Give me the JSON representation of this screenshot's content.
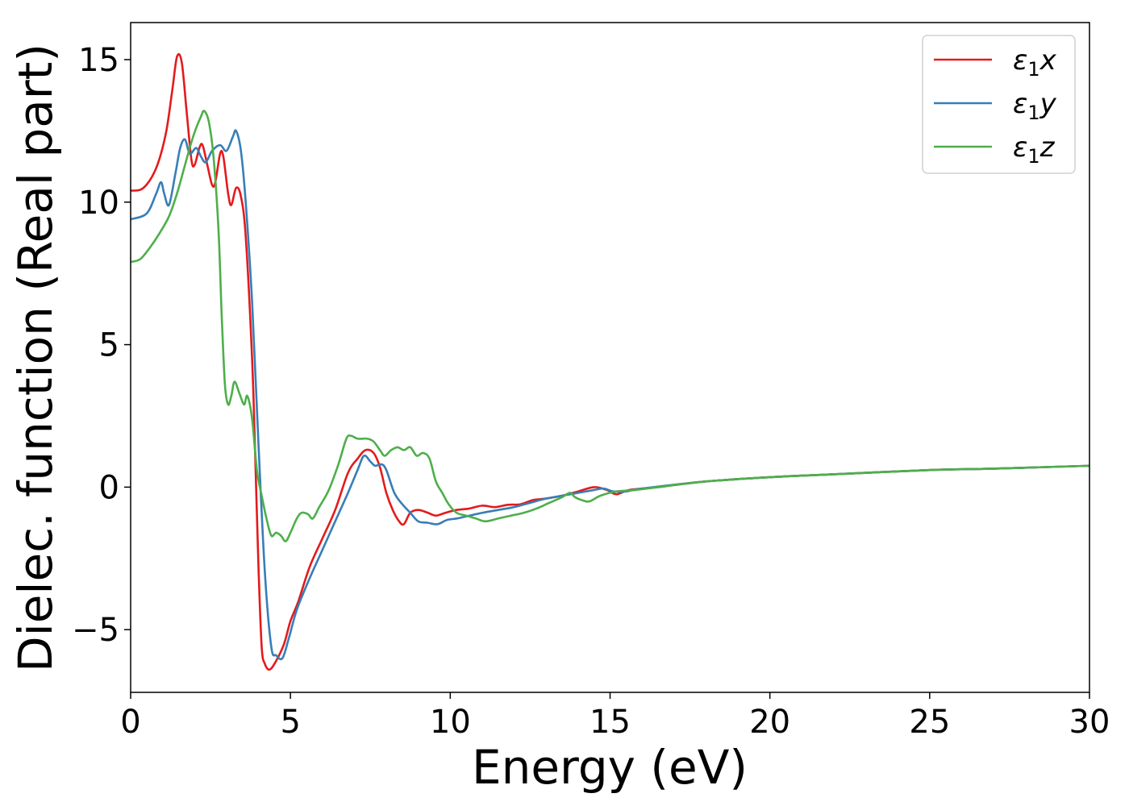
{
  "chart_data": {
    "type": "line",
    "title": "",
    "xlabel": "Energy (eV)",
    "ylabel": "Dielec. function (Real part)",
    "xlim": [
      0,
      30
    ],
    "ylim": [
      -7.2,
      16.3
    ],
    "xticks": [
      0,
      5,
      10,
      15,
      20,
      25,
      30
    ],
    "yticks": [
      -5,
      0,
      5,
      10,
      15
    ],
    "xtick_labels": [
      "0",
      "5",
      "10",
      "15",
      "20",
      "25",
      "30"
    ],
    "ytick_labels": [
      "−5",
      "0",
      "5",
      "10",
      "15"
    ],
    "grid": false,
    "legend_position": "top-right",
    "series": [
      {
        "name": "ε₁x",
        "legend": {
          "symbol": "ε",
          "sub": "1",
          "var": "x"
        },
        "color": "#e41a1c",
        "points": [
          [
            0,
            10.4
          ],
          [
            0.4,
            10.5
          ],
          [
            0.8,
            11.2
          ],
          [
            1.1,
            12.4
          ],
          [
            1.3,
            13.9
          ],
          [
            1.45,
            15.1
          ],
          [
            1.6,
            14.9
          ],
          [
            1.75,
            13.2
          ],
          [
            1.9,
            11.5
          ],
          [
            2.0,
            11.3
          ],
          [
            2.15,
            11.9
          ],
          [
            2.25,
            12.0
          ],
          [
            2.4,
            11.3
          ],
          [
            2.55,
            10.6
          ],
          [
            2.65,
            10.7
          ],
          [
            2.8,
            11.7
          ],
          [
            2.9,
            11.6
          ],
          [
            3.05,
            10.3
          ],
          [
            3.15,
            9.9
          ],
          [
            3.3,
            10.5
          ],
          [
            3.45,
            10.2
          ],
          [
            3.6,
            8.8
          ],
          [
            3.8,
            4.5
          ],
          [
            3.9,
            1.0
          ],
          [
            4.0,
            -2.8
          ],
          [
            4.1,
            -5.6
          ],
          [
            4.2,
            -6.2
          ],
          [
            4.35,
            -6.4
          ],
          [
            4.55,
            -6.1
          ],
          [
            4.8,
            -5.5
          ],
          [
            5.0,
            -4.7
          ],
          [
            5.25,
            -4.0
          ],
          [
            5.6,
            -2.8
          ],
          [
            6.0,
            -1.8
          ],
          [
            6.4,
            -0.8
          ],
          [
            6.8,
            0.5
          ],
          [
            7.1,
            1.0
          ],
          [
            7.35,
            1.3
          ],
          [
            7.6,
            1.2
          ],
          [
            7.8,
            0.7
          ],
          [
            8.0,
            -0.2
          ],
          [
            8.2,
            -0.8
          ],
          [
            8.4,
            -1.2
          ],
          [
            8.55,
            -1.3
          ],
          [
            8.75,
            -0.9
          ],
          [
            9.0,
            -0.8
          ],
          [
            9.3,
            -0.9
          ],
          [
            9.55,
            -1.0
          ],
          [
            9.85,
            -0.9
          ],
          [
            10.2,
            -0.8
          ],
          [
            10.6,
            -0.75
          ],
          [
            11.0,
            -0.65
          ],
          [
            11.4,
            -0.7
          ],
          [
            11.8,
            -0.62
          ],
          [
            12.2,
            -0.6
          ],
          [
            12.6,
            -0.45
          ],
          [
            13.0,
            -0.4
          ],
          [
            13.5,
            -0.3
          ],
          [
            14.0,
            -0.15
          ],
          [
            14.5,
            0.0
          ],
          [
            14.9,
            -0.1
          ],
          [
            15.2,
            -0.25
          ],
          [
            15.6,
            -0.1
          ],
          [
            16.5,
            0.0
          ],
          [
            18,
            0.2
          ],
          [
            20,
            0.35
          ],
          [
            22,
            0.45
          ],
          [
            25,
            0.6
          ],
          [
            27,
            0.65
          ],
          [
            30,
            0.75
          ]
        ]
      },
      {
        "name": "ε₁y",
        "legend": {
          "symbol": "ε",
          "sub": "1",
          "var": "y"
        },
        "color": "#377eb8",
        "points": [
          [
            0,
            9.4
          ],
          [
            0.5,
            9.6
          ],
          [
            0.8,
            10.3
          ],
          [
            0.95,
            10.7
          ],
          [
            1.05,
            10.3
          ],
          [
            1.2,
            9.9
          ],
          [
            1.4,
            11.0
          ],
          [
            1.55,
            11.9
          ],
          [
            1.7,
            12.2
          ],
          [
            1.85,
            11.7
          ],
          [
            2.05,
            11.9
          ],
          [
            2.2,
            11.6
          ],
          [
            2.35,
            11.4
          ],
          [
            2.55,
            11.8
          ],
          [
            2.8,
            12.0
          ],
          [
            3.0,
            11.8
          ],
          [
            3.2,
            12.3
          ],
          [
            3.3,
            12.5
          ],
          [
            3.45,
            11.8
          ],
          [
            3.6,
            10.0
          ],
          [
            3.8,
            6.5
          ],
          [
            4.0,
            1.5
          ],
          [
            4.2,
            -3.0
          ],
          [
            4.4,
            -5.6
          ],
          [
            4.55,
            -5.9
          ],
          [
            4.75,
            -6.0
          ],
          [
            4.95,
            -5.3
          ],
          [
            5.2,
            -4.3
          ],
          [
            5.6,
            -3.2
          ],
          [
            6.0,
            -2.2
          ],
          [
            6.4,
            -1.2
          ],
          [
            6.8,
            -0.2
          ],
          [
            7.1,
            0.6
          ],
          [
            7.3,
            1.1
          ],
          [
            7.5,
            0.9
          ],
          [
            7.65,
            0.75
          ],
          [
            7.85,
            0.8
          ],
          [
            8.0,
            0.6
          ],
          [
            8.25,
            -0.2
          ],
          [
            8.5,
            -0.6
          ],
          [
            8.75,
            -0.9
          ],
          [
            9.0,
            -1.2
          ],
          [
            9.3,
            -1.25
          ],
          [
            9.6,
            -1.3
          ],
          [
            9.9,
            -1.15
          ],
          [
            10.2,
            -1.1
          ],
          [
            10.6,
            -1.0
          ],
          [
            11.0,
            -0.9
          ],
          [
            11.5,
            -0.8
          ],
          [
            12.0,
            -0.7
          ],
          [
            12.5,
            -0.55
          ],
          [
            13.0,
            -0.4
          ],
          [
            13.5,
            -0.3
          ],
          [
            14.0,
            -0.2
          ],
          [
            14.5,
            -0.1
          ],
          [
            14.8,
            -0.05
          ],
          [
            15.1,
            -0.15
          ],
          [
            15.5,
            -0.15
          ],
          [
            16,
            -0.05
          ],
          [
            18,
            0.2
          ],
          [
            20,
            0.35
          ],
          [
            22,
            0.45
          ],
          [
            25,
            0.6
          ],
          [
            27,
            0.65
          ],
          [
            30,
            0.75
          ]
        ]
      },
      {
        "name": "ε₁z",
        "legend": {
          "symbol": "ε",
          "sub": "1",
          "var": "z"
        },
        "color": "#4daf4a",
        "points": [
          [
            0,
            7.9
          ],
          [
            0.3,
            8.0
          ],
          [
            0.6,
            8.4
          ],
          [
            0.9,
            8.9
          ],
          [
            1.2,
            9.5
          ],
          [
            1.45,
            10.3
          ],
          [
            1.7,
            11.3
          ],
          [
            1.9,
            12.1
          ],
          [
            2.05,
            12.6
          ],
          [
            2.2,
            13.0
          ],
          [
            2.3,
            13.2
          ],
          [
            2.45,
            12.8
          ],
          [
            2.6,
            11.5
          ],
          [
            2.75,
            9.0
          ],
          [
            2.85,
            6.0
          ],
          [
            2.95,
            3.6
          ],
          [
            3.05,
            2.9
          ],
          [
            3.15,
            3.2
          ],
          [
            3.25,
            3.7
          ],
          [
            3.4,
            3.3
          ],
          [
            3.55,
            2.9
          ],
          [
            3.65,
            3.2
          ],
          [
            3.8,
            2.4
          ],
          [
            3.95,
            0.6
          ],
          [
            4.1,
            -0.3
          ],
          [
            4.25,
            -1.1
          ],
          [
            4.4,
            -1.7
          ],
          [
            4.55,
            -1.6
          ],
          [
            4.7,
            -1.7
          ],
          [
            4.85,
            -1.9
          ],
          [
            5.0,
            -1.6
          ],
          [
            5.2,
            -1.1
          ],
          [
            5.35,
            -0.9
          ],
          [
            5.55,
            -0.95
          ],
          [
            5.7,
            -1.1
          ],
          [
            5.9,
            -0.7
          ],
          [
            6.2,
            -0.1
          ],
          [
            6.5,
            0.8
          ],
          [
            6.75,
            1.7
          ],
          [
            6.9,
            1.8
          ],
          [
            7.1,
            1.7
          ],
          [
            7.4,
            1.7
          ],
          [
            7.6,
            1.6
          ],
          [
            7.8,
            1.3
          ],
          [
            7.95,
            1.1
          ],
          [
            8.15,
            1.3
          ],
          [
            8.35,
            1.4
          ],
          [
            8.55,
            1.3
          ],
          [
            8.75,
            1.4
          ],
          [
            8.95,
            1.1
          ],
          [
            9.15,
            1.2
          ],
          [
            9.35,
            1.0
          ],
          [
            9.55,
            0.2
          ],
          [
            9.75,
            -0.2
          ],
          [
            9.95,
            -0.6
          ],
          [
            10.2,
            -0.9
          ],
          [
            10.5,
            -1.0
          ],
          [
            10.8,
            -1.1
          ],
          [
            11.1,
            -1.2
          ],
          [
            11.5,
            -1.1
          ],
          [
            11.9,
            -1.0
          ],
          [
            12.3,
            -0.9
          ],
          [
            12.7,
            -0.75
          ],
          [
            13.1,
            -0.55
          ],
          [
            13.5,
            -0.35
          ],
          [
            13.75,
            -0.2
          ],
          [
            13.9,
            -0.35
          ],
          [
            14.1,
            -0.45
          ],
          [
            14.35,
            -0.5
          ],
          [
            14.7,
            -0.3
          ],
          [
            15.2,
            -0.15
          ],
          [
            15.8,
            -0.1
          ],
          [
            16.5,
            0.0
          ],
          [
            18,
            0.2
          ],
          [
            20,
            0.35
          ],
          [
            22,
            0.45
          ],
          [
            25,
            0.6
          ],
          [
            27,
            0.65
          ],
          [
            30,
            0.75
          ]
        ]
      }
    ]
  }
}
